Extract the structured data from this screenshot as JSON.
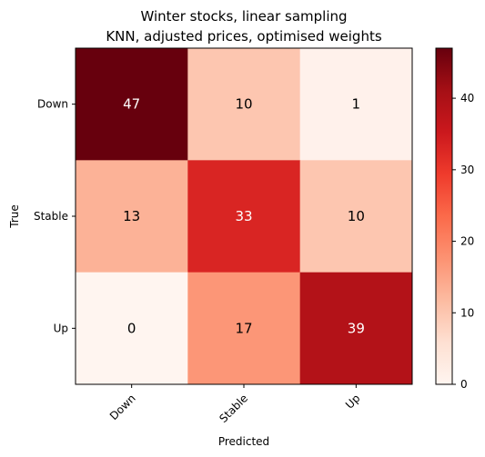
{
  "chart_data": {
    "type": "heatmap",
    "title": "Winter stocks, linear sampling",
    "subtitle": "KNN, adjusted prices, optimised weights",
    "xlabel": "Predicted",
    "ylabel": "True",
    "x_categories": [
      "Down",
      "Stable",
      "Up"
    ],
    "y_categories": [
      "Down",
      "Stable",
      "Up"
    ],
    "values": [
      [
        47,
        10,
        1
      ],
      [
        13,
        33,
        10
      ],
      [
        0,
        17,
        39
      ]
    ],
    "colormap": "Reds",
    "colorbar": {
      "range": [
        0,
        47
      ],
      "ticks": [
        0,
        10,
        20,
        30,
        40
      ],
      "tick_labels": [
        "0",
        "10",
        "20",
        "30",
        "40"
      ]
    },
    "annotation_colors": {
      "dark_cell": "#ffffff",
      "light_cell": "#000000"
    },
    "annotation_threshold": 23.5
  }
}
